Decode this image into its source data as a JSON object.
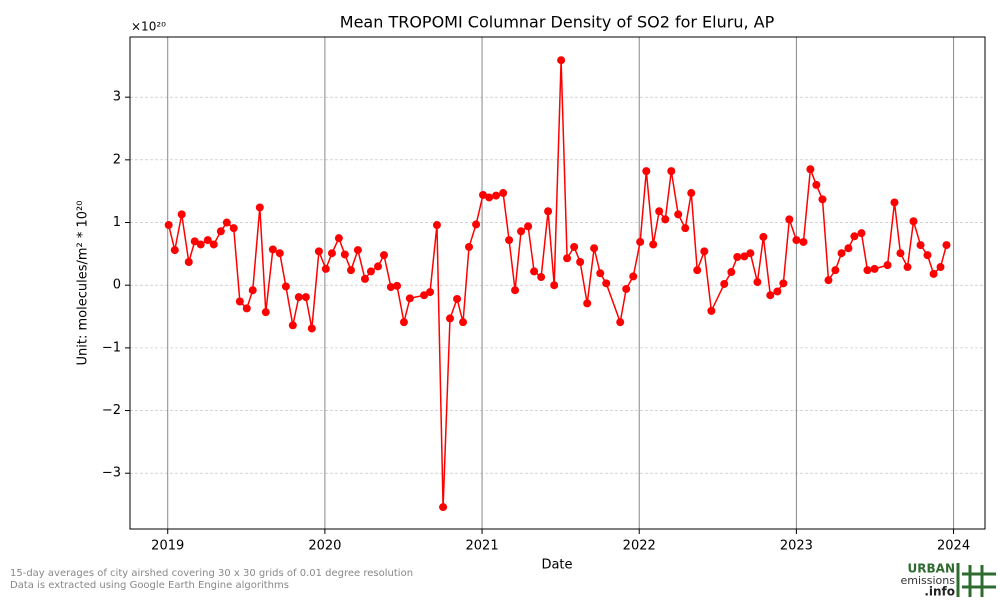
{
  "chart_data": {
    "type": "line",
    "title": "Mean TROPOMI Columnar Density of SO2 for Eluru, AP",
    "x_label": "Date",
    "y_label": "Unit: molecules/m² * 10²⁰",
    "y_multiplier": "×10²⁰",
    "annotations": [
      "15-day averages of city airshed covering 30 x 30 grids of 0.01 degree resolution",
      "Data is extracted using Google Earth Engine algorithms"
    ],
    "logo": [
      "URBAN",
      "emissions",
      ".info"
    ],
    "color": "#ff0000",
    "grid": true,
    "xlim": [
      2018.76,
      2024.2
    ],
    "xticks": [
      2019,
      2020,
      2021,
      2022,
      2023,
      2024
    ],
    "ylim": [
      -3.89,
      3.96
    ],
    "yticks": [
      {
        "value": -3,
        "label": "−3"
      },
      {
        "value": -2,
        "label": "−2"
      },
      {
        "value": -1,
        "label": "−1"
      },
      0,
      1,
      2,
      3
    ],
    "x": [
      2019.006,
      2019.045,
      2019.089,
      2019.134,
      2019.172,
      2019.21,
      2019.255,
      2019.293,
      2019.338,
      2019.376,
      2019.42,
      2019.459,
      2019.503,
      2019.541,
      2019.586,
      2019.624,
      2019.669,
      2019.713,
      2019.752,
      2019.796,
      2019.834,
      2019.879,
      2019.917,
      2019.962,
      2020.006,
      2020.045,
      2020.089,
      2020.127,
      2020.166,
      2020.21,
      2020.255,
      2020.293,
      2020.338,
      2020.376,
      2020.42,
      2020.459,
      2020.503,
      2020.541,
      2020.631,
      2020.669,
      2020.713,
      2020.752,
      2020.796,
      2020.841,
      2020.879,
      2020.917,
      2020.962,
      2021.006,
      2021.045,
      2021.089,
      2021.134,
      2021.172,
      2021.21,
      2021.248,
      2021.293,
      2021.331,
      2021.376,
      2021.42,
      2021.459,
      2021.503,
      2021.541,
      2021.586,
      2021.624,
      2021.669,
      2021.713,
      2021.752,
      2021.79,
      2021.879,
      2021.917,
      2021.962,
      2022.006,
      2022.045,
      2022.089,
      2022.127,
      2022.166,
      2022.204,
      2022.248,
      2022.293,
      2022.331,
      2022.369,
      2022.414,
      2022.459,
      2022.541,
      2022.586,
      2022.624,
      2022.669,
      2022.707,
      2022.752,
      2022.79,
      2022.834,
      2022.879,
      2022.917,
      2022.955,
      2023.0,
      2023.045,
      2023.089,
      2023.127,
      2023.166,
      2023.204,
      2023.248,
      2023.287,
      2023.331,
      2023.369,
      2023.414,
      2023.452,
      2023.497,
      2023.58,
      2023.624,
      2023.662,
      2023.707,
      2023.745,
      2023.79,
      2023.834,
      2023.873,
      2023.917,
      2023.955
    ],
    "values": [
      0.96,
      0.56,
      1.13,
      0.37,
      0.7,
      0.65,
      0.72,
      0.65,
      0.86,
      1.0,
      0.91,
      -0.26,
      -0.37,
      -0.08,
      1.24,
      -0.43,
      0.57,
      0.51,
      -0.02,
      -0.64,
      -0.19,
      -0.19,
      -0.69,
      0.54,
      0.26,
      0.51,
      0.75,
      0.49,
      0.24,
      0.56,
      0.1,
      0.22,
      0.3,
      0.48,
      -0.03,
      -0.01,
      -0.59,
      -0.21,
      -0.16,
      -0.11,
      0.96,
      -3.54,
      -0.53,
      -0.22,
      -0.59,
      0.61,
      0.97,
      1.44,
      1.4,
      1.43,
      1.47,
      0.72,
      -0.08,
      0.86,
      0.94,
      0.22,
      0.13,
      1.18,
      0.0,
      3.59,
      0.43,
      0.61,
      0.37,
      -0.29,
      0.59,
      0.19,
      0.03,
      -0.59,
      -0.06,
      0.14,
      0.69,
      1.82,
      0.65,
      1.18,
      1.05,
      1.82,
      1.13,
      0.91,
      1.47,
      0.24,
      0.54,
      -0.41,
      0.02,
      0.21,
      0.45,
      0.46,
      0.51,
      0.05,
      0.77,
      -0.16,
      -0.1,
      0.03,
      1.05,
      0.72,
      0.69,
      1.85,
      1.6,
      1.37,
      0.08,
      0.24,
      0.51,
      0.59,
      0.78,
      0.83,
      0.24,
      0.26,
      0.32,
      1.32,
      0.51,
      0.29,
      1.02,
      0.64,
      0.48,
      0.18,
      0.29,
      0.64
    ]
  }
}
